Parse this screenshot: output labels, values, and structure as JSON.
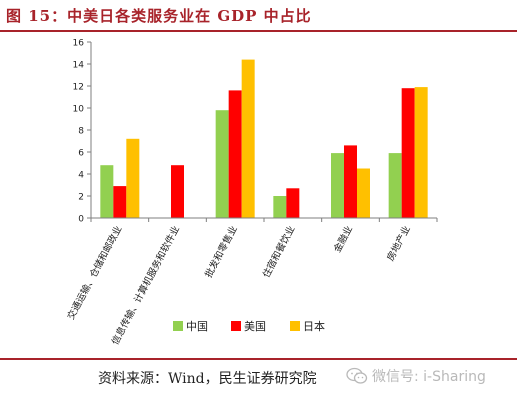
{
  "header": {
    "title": "图 15：中美日各类服务业在 GDP 中占比"
  },
  "source": {
    "text": "资料来源：Wind，民生证券研究院"
  },
  "watermark": {
    "text": "微信号: i-Sharing",
    "icon": "wechat-icon"
  },
  "chart_data": {
    "type": "bar",
    "categories": [
      "交通运输、仓储和邮政业",
      "信息传输、计算机服务和软件业",
      "批发和零售业",
      "住宿和餐饮业",
      "金融业",
      "房地产业"
    ],
    "series": [
      {
        "name": "中国",
        "color": "#92d050",
        "values": [
          4.8,
          null,
          9.8,
          2.0,
          5.9,
          5.9
        ]
      },
      {
        "name": "美国",
        "color": "#ff0000",
        "values": [
          2.9,
          4.8,
          11.6,
          2.7,
          6.6,
          11.8
        ]
      },
      {
        "name": "日本",
        "color": "#ffc000",
        "values": [
          7.2,
          null,
          14.4,
          null,
          4.5,
          11.9
        ]
      }
    ],
    "ylim": [
      0,
      16
    ],
    "yticks": [
      0,
      2,
      4,
      6,
      8,
      10,
      12,
      14,
      16
    ],
    "legend_position": "bottom",
    "grid": false
  }
}
